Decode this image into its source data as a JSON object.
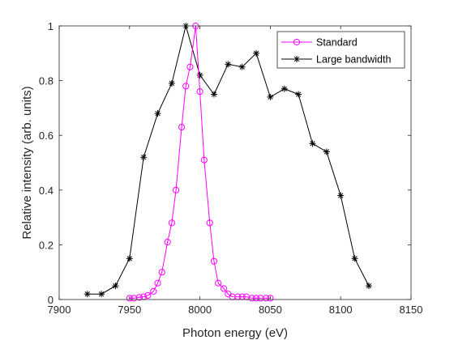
{
  "chart_data": {
    "type": "line",
    "xlabel": "Photon energy (eV)",
    "ylabel": "Relative intensity (arb. units)",
    "xlim": [
      7900,
      8150
    ],
    "ylim": [
      0,
      1
    ],
    "xticks": [
      7900,
      7950,
      8000,
      8050,
      8100,
      8150
    ],
    "yticks": [
      0,
      0.2,
      0.4,
      0.6,
      0.8,
      1
    ],
    "xtick_labels": [
      "7900",
      "7950",
      "8000",
      "8050",
      "8100",
      "8150"
    ],
    "ytick_labels": [
      "0",
      "0.2",
      "0.4",
      "0.6",
      "0.8",
      "1"
    ],
    "grid": false,
    "legend_position": "top-right",
    "series": [
      {
        "name": "Standard",
        "color": "#ff00ff",
        "marker": "circle",
        "x": [
          7950,
          7953,
          7957,
          7960,
          7963,
          7967,
          7970,
          7973,
          7977,
          7980,
          7983,
          7987,
          7990,
          7993,
          7997,
          8000,
          8003,
          8007,
          8010,
          8013,
          8017,
          8020,
          8023,
          8027,
          8030,
          8033,
          8037,
          8040,
          8043,
          8047,
          8050
        ],
        "y": [
          0.005,
          0.005,
          0.008,
          0.01,
          0.015,
          0.03,
          0.06,
          0.1,
          0.21,
          0.28,
          0.4,
          0.63,
          0.78,
          0.85,
          1.0,
          0.76,
          0.51,
          0.28,
          0.14,
          0.06,
          0.04,
          0.02,
          0.01,
          0.01,
          0.01,
          0.01,
          0.005,
          0.005,
          0.005,
          0.005,
          0.005
        ]
      },
      {
        "name": "Large bandwidth",
        "color": "#000000",
        "marker": "asterisk",
        "x": [
          7920,
          7930,
          7940,
          7950,
          7960,
          7970,
          7980,
          7990,
          8000,
          8010,
          8020,
          8030,
          8040,
          8050,
          8060,
          8070,
          8080,
          8090,
          8100,
          8110,
          8120
        ],
        "y": [
          0.02,
          0.02,
          0.05,
          0.15,
          0.52,
          0.68,
          0.79,
          1.0,
          0.82,
          0.75,
          0.86,
          0.85,
          0.9,
          0.74,
          0.77,
          0.75,
          0.57,
          0.54,
          0.38,
          0.15,
          0.05
        ]
      }
    ]
  }
}
